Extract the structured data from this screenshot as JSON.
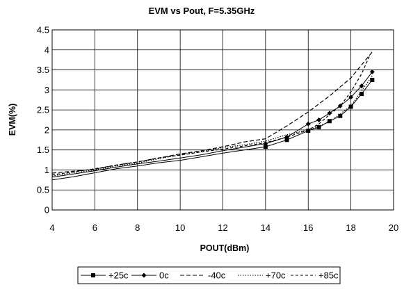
{
  "chart_data": {
    "type": "line",
    "title": "EVM vs Pout, F=5.35GHz",
    "xlabel": "POUT(dBm)",
    "ylabel": "EVM(%)",
    "xlim": [
      4,
      20
    ],
    "ylim": [
      0,
      4.5
    ],
    "xticks": [
      4,
      6,
      8,
      10,
      12,
      14,
      16,
      18,
      20
    ],
    "yticks": [
      0,
      0.5,
      1,
      1.5,
      2,
      2.5,
      3,
      3.5,
      4,
      4.5
    ],
    "xtick_labels": [
      "4",
      "6",
      "8",
      "10",
      "12",
      "14",
      "16",
      "18",
      "20"
    ],
    "ytick_labels": [
      "0",
      "0.5",
      "1",
      "1.5",
      "2",
      "2.5",
      "3",
      "3.5",
      "4",
      "4.5"
    ],
    "grid": true,
    "legend_position": "bottom",
    "series": [
      {
        "name": "+25c",
        "style": "solid",
        "marker": "square",
        "color": "#000000",
        "x": [
          4,
          5,
          6,
          7,
          8,
          9,
          10,
          11,
          12,
          13,
          14,
          15,
          16,
          16.5,
          17,
          17.5,
          18,
          18.5,
          19
        ],
        "y": [
          0.75,
          0.83,
          0.93,
          1.03,
          1.1,
          1.18,
          1.24,
          1.33,
          1.42,
          1.5,
          1.58,
          1.75,
          1.98,
          2.07,
          2.22,
          2.35,
          2.58,
          2.9,
          3.25
        ]
      },
      {
        "name": "0c",
        "style": "solid",
        "marker": "diamond",
        "color": "#000000",
        "x": [
          4,
          5,
          6,
          7,
          8,
          9,
          10,
          11,
          12,
          13,
          14,
          15,
          16,
          16.5,
          17,
          17.5,
          18,
          18.5,
          19
        ],
        "y": [
          0.82,
          0.9,
          0.98,
          1.07,
          1.15,
          1.22,
          1.3,
          1.38,
          1.48,
          1.57,
          1.66,
          1.82,
          2.15,
          2.25,
          2.42,
          2.6,
          2.82,
          3.1,
          3.45
        ]
      },
      {
        "name": "-40c",
        "style": "dashed",
        "marker": "none",
        "color": "#000000",
        "x": [
          4,
          5,
          6,
          7,
          8,
          9,
          10,
          11,
          12,
          13,
          14,
          15,
          16,
          17,
          18,
          19
        ],
        "y": [
          0.92,
          0.97,
          1.02,
          1.12,
          1.2,
          1.3,
          1.4,
          1.48,
          1.58,
          1.7,
          1.78,
          2.1,
          2.45,
          2.85,
          3.3,
          3.95
        ]
      },
      {
        "name": "+70c",
        "style": "dotted",
        "marker": "none",
        "color": "#000000",
        "x": [
          4,
          5,
          6,
          7,
          8,
          9,
          10,
          11,
          12,
          13,
          14,
          15,
          16,
          17,
          18,
          19
        ],
        "y": [
          0.85,
          0.93,
          1.0,
          1.1,
          1.17,
          1.28,
          1.38,
          1.46,
          1.56,
          1.63,
          1.72,
          1.88,
          2.0,
          2.2,
          2.6,
          3.35
        ]
      },
      {
        "name": "+85c",
        "style": "dash-dot",
        "marker": "none",
        "color": "#000000",
        "x": [
          4,
          5,
          6,
          7,
          8,
          9,
          10,
          11,
          12,
          13,
          14,
          15,
          16,
          16.5,
          17,
          17.5,
          18,
          18.5,
          18.9
        ],
        "y": [
          0.88,
          0.95,
          1.03,
          1.12,
          1.2,
          1.3,
          1.37,
          1.45,
          1.52,
          1.6,
          1.68,
          1.82,
          2.0,
          2.15,
          2.38,
          2.6,
          2.95,
          3.4,
          3.88
        ]
      }
    ]
  }
}
